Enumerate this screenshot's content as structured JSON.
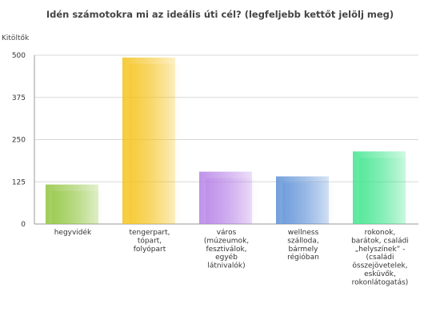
{
  "chart_data": {
    "type": "bar",
    "title": "Idén számotokra mi az ideális úti cél? (legfeljebb kettőt jelölj meg)",
    "ylabel": "Kitöltők",
    "xlabel": "",
    "ylim": [
      0,
      500
    ],
    "yticks": [
      0,
      125,
      250,
      375,
      500
    ],
    "grid": true,
    "categories": [
      "hegyvidék",
      "tengerpart, tópart, folyópart",
      "város (múzeumok, fesztiválok, egyéb látnivalók)",
      "wellness szálloda, bármely régióban",
      "rokonok, barátok, családi „helyszínek” - (családi összejövetelek, esküvők, rokonlátogatás)"
    ],
    "category_lines": [
      [
        "hegyvidék"
      ],
      [
        "tengerpart,",
        "tópart,",
        "folyópart"
      ],
      [
        "város",
        "(múzeumok,",
        "fesztiválok,",
        "egyéb",
        "látnivalók)"
      ],
      [
        "wellness",
        "szálloda,",
        "bármely",
        "régióban"
      ],
      [
        "rokonok,",
        "barátok, családi",
        "„helyszínek” -",
        "(családi",
        "összejövetelek,",
        "esküvők,",
        "rokonlátogatás)"
      ]
    ],
    "values": [
      117,
      493,
      155,
      141,
      215
    ],
    "colors": [
      "#8fc43c",
      "#f5c218",
      "#b57fe6",
      "#5b8fd6",
      "#3ee58c"
    ]
  }
}
